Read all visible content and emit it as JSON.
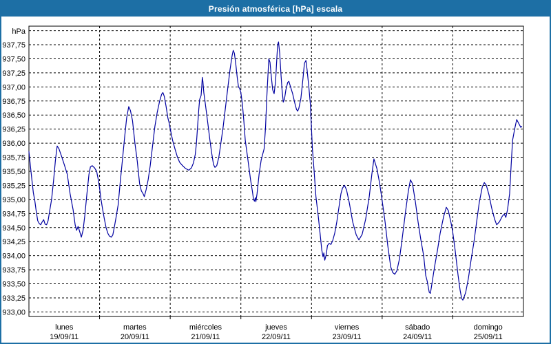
{
  "window": {
    "title": "Presión atmosférica [hPa] escala"
  },
  "colors": {
    "frame": "#1d6fa5",
    "titlebar_bg": "#1d6fa5",
    "title_text": "#ffffff",
    "plot_bg": "#ffffff",
    "grid": "#000000",
    "axis": "#000000",
    "label_text": "#000000",
    "line": "#0000a0"
  },
  "chart_data": {
    "type": "line",
    "title": "Presión atmosférica [hPa] escala",
    "y_unit_label": "hPa",
    "ylim": [
      933.0,
      938.0
    ],
    "y_tick_step": 0.25,
    "y_tick_labels": [
      "937,75",
      "937,50",
      "937,25",
      "937,00",
      "936,75",
      "936,50",
      "936,25",
      "936,00",
      "935,75",
      "935,50",
      "935,25",
      "935,00",
      "934,75",
      "934,50",
      "934,25",
      "934,00",
      "933,75",
      "933,50",
      "933,25",
      "933,00"
    ],
    "grid": "dashed",
    "legend": "none",
    "hours_per_day": 24,
    "x_days": [
      {
        "name": "lunes",
        "date": "19/09/11"
      },
      {
        "name": "martes",
        "date": "20/09/11"
      },
      {
        "name": "miércoles",
        "date": "21/09/11"
      },
      {
        "name": "jueves",
        "date": "22/09/11"
      },
      {
        "name": "viernes",
        "date": "23/09/11"
      },
      {
        "name": "sábado",
        "date": "24/09/11"
      },
      {
        "name": "domingo",
        "date": "25/09/11"
      }
    ],
    "series": [
      {
        "name": "Presión atmosférica [hPa]",
        "color": "#0000a0",
        "points": [
          [
            0,
            935.85
          ],
          [
            0.5,
            935.6
          ],
          [
            1,
            935.35
          ],
          [
            1.5,
            935.12
          ],
          [
            2,
            934.98
          ],
          [
            2.5,
            934.78
          ],
          [
            3,
            934.62
          ],
          [
            3.5,
            934.57
          ],
          [
            4,
            934.55
          ],
          [
            4.5,
            934.6
          ],
          [
            5,
            934.64
          ],
          [
            5.5,
            934.56
          ],
          [
            6,
            934.55
          ],
          [
            6.5,
            934.62
          ],
          [
            7,
            934.78
          ],
          [
            7.7,
            935.0
          ],
          [
            8.4,
            935.35
          ],
          [
            9,
            935.7
          ],
          [
            9.6,
            935.95
          ],
          [
            10.2,
            935.9
          ],
          [
            11,
            935.78
          ],
          [
            12,
            935.62
          ],
          [
            13,
            935.45
          ],
          [
            14,
            935.1
          ],
          [
            15,
            934.82
          ],
          [
            15.7,
            934.55
          ],
          [
            16.2,
            934.45
          ],
          [
            16.7,
            934.52
          ],
          [
            17.3,
            934.42
          ],
          [
            17.8,
            934.33
          ],
          [
            18.4,
            934.45
          ],
          [
            19,
            934.72
          ],
          [
            19.7,
            935.1
          ],
          [
            20.4,
            935.45
          ],
          [
            20.9,
            935.58
          ],
          [
            21.5,
            935.6
          ],
          [
            22.3,
            935.56
          ],
          [
            23,
            935.5
          ],
          [
            23.5,
            935.37
          ],
          [
            24,
            935.2
          ],
          [
            24.5,
            935.0
          ],
          [
            25,
            934.84
          ],
          [
            25.6,
            934.66
          ],
          [
            26.2,
            934.5
          ],
          [
            26.8,
            934.4
          ],
          [
            27.3,
            934.35
          ],
          [
            28,
            934.33
          ],
          [
            28.5,
            934.37
          ],
          [
            29,
            934.5
          ],
          [
            29.6,
            934.68
          ],
          [
            30.3,
            934.9
          ],
          [
            31,
            935.3
          ],
          [
            31.8,
            935.72
          ],
          [
            32.5,
            936.1
          ],
          [
            33.2,
            936.45
          ],
          [
            33.9,
            936.65
          ],
          [
            34.5,
            936.58
          ],
          [
            35.2,
            936.4
          ],
          [
            36,
            936.0
          ],
          [
            36.8,
            935.68
          ],
          [
            37.6,
            935.28
          ],
          [
            38.2,
            935.15
          ],
          [
            38.8,
            935.1
          ],
          [
            39.2,
            935.05
          ],
          [
            39.8,
            935.17
          ],
          [
            40.5,
            935.35
          ],
          [
            41.2,
            935.6
          ],
          [
            42,
            935.95
          ],
          [
            42.8,
            936.3
          ],
          [
            43.6,
            936.55
          ],
          [
            44.4,
            936.75
          ],
          [
            45.1,
            936.87
          ],
          [
            45.5,
            936.9
          ],
          [
            46,
            936.83
          ],
          [
            46.6,
            936.65
          ],
          [
            47.2,
            936.45
          ],
          [
            47.6,
            936.37
          ],
          [
            48,
            936.26
          ],
          [
            48.8,
            936.05
          ],
          [
            49.6,
            935.9
          ],
          [
            50.4,
            935.76
          ],
          [
            51.2,
            935.66
          ],
          [
            52.2,
            935.6
          ],
          [
            53.2,
            935.55
          ],
          [
            54.3,
            935.52
          ],
          [
            55.2,
            935.56
          ],
          [
            55.9,
            935.65
          ],
          [
            56.5,
            935.8
          ],
          [
            56.9,
            936.0
          ],
          [
            57.3,
            936.3
          ],
          [
            57.7,
            936.6
          ],
          [
            58,
            936.78
          ],
          [
            58.3,
            936.82
          ],
          [
            58.5,
            936.85
          ],
          [
            58.7,
            937.0
          ],
          [
            58.9,
            937.17
          ],
          [
            59.1,
            937.1
          ],
          [
            59.4,
            936.9
          ],
          [
            59.8,
            936.75
          ],
          [
            60.3,
            936.55
          ],
          [
            60.9,
            936.3
          ],
          [
            61.5,
            936.05
          ],
          [
            62.1,
            935.82
          ],
          [
            62.7,
            935.62
          ],
          [
            63.2,
            935.57
          ],
          [
            63.8,
            935.6
          ],
          [
            64.5,
            935.75
          ],
          [
            65.2,
            936.0
          ],
          [
            66,
            936.3
          ],
          [
            66.8,
            936.65
          ],
          [
            67.6,
            937.0
          ],
          [
            68.3,
            937.3
          ],
          [
            69,
            937.55
          ],
          [
            69.4,
            937.65
          ],
          [
            69.8,
            937.6
          ],
          [
            70.3,
            937.4
          ],
          [
            70.8,
            937.15
          ],
          [
            71.2,
            937.0
          ],
          [
            71.6,
            936.97
          ],
          [
            72,
            936.9
          ],
          [
            72.5,
            936.7
          ],
          [
            73,
            936.4
          ],
          [
            73.5,
            936.05
          ],
          [
            74.4,
            935.7
          ],
          [
            75.3,
            935.35
          ],
          [
            75.9,
            935.15
          ],
          [
            76.3,
            935.0
          ],
          [
            76.6,
            934.97
          ],
          [
            76.9,
            935.03
          ],
          [
            77.1,
            934.96
          ],
          [
            77.5,
            935.1
          ],
          [
            78.2,
            935.45
          ],
          [
            78.9,
            935.7
          ],
          [
            79.4,
            935.8
          ],
          [
            79.9,
            935.9
          ],
          [
            80.4,
            936.3
          ],
          [
            80.8,
            936.8
          ],
          [
            81.2,
            937.2
          ],
          [
            81.5,
            937.5
          ],
          [
            81.9,
            937.44
          ],
          [
            82.4,
            937.15
          ],
          [
            82.8,
            936.95
          ],
          [
            83.3,
            936.88
          ],
          [
            83.8,
            937.1
          ],
          [
            84.2,
            937.5
          ],
          [
            84.5,
            937.75
          ],
          [
            84.8,
            937.8
          ],
          [
            85.2,
            937.6
          ],
          [
            85.6,
            937.25
          ],
          [
            86,
            936.95
          ],
          [
            86.4,
            936.73
          ],
          [
            86.8,
            936.78
          ],
          [
            87.3,
            936.95
          ],
          [
            87.9,
            937.08
          ],
          [
            88.3,
            937.1
          ],
          [
            88.9,
            937.0
          ],
          [
            89.6,
            936.88
          ],
          [
            90.3,
            936.72
          ],
          [
            90.9,
            936.6
          ],
          [
            91.3,
            936.57
          ],
          [
            91.7,
            936.62
          ],
          [
            92.4,
            936.8
          ],
          [
            93.1,
            937.15
          ],
          [
            93.6,
            937.42
          ],
          [
            94.1,
            937.47
          ],
          [
            94.5,
            937.3
          ],
          [
            95.1,
            937.0
          ],
          [
            95.6,
            936.7
          ],
          [
            95.9,
            936.35
          ],
          [
            96.3,
            935.9
          ],
          [
            96.9,
            935.5
          ],
          [
            97.5,
            935.05
          ],
          [
            98.3,
            934.7
          ],
          [
            99,
            934.35
          ],
          [
            99.5,
            934.1
          ],
          [
            99.9,
            933.98
          ],
          [
            100.2,
            934.05
          ],
          [
            100.5,
            933.92
          ],
          [
            101,
            934.02
          ],
          [
            101.4,
            934.18
          ],
          [
            102,
            934.22
          ],
          [
            102.6,
            934.2
          ],
          [
            103.2,
            934.27
          ],
          [
            103.9,
            934.4
          ],
          [
            104.6,
            934.6
          ],
          [
            105.3,
            934.85
          ],
          [
            106,
            935.1
          ],
          [
            106.5,
            935.2
          ],
          [
            107.2,
            935.25
          ],
          [
            107.9,
            935.17
          ],
          [
            108.8,
            934.95
          ],
          [
            110,
            934.6
          ],
          [
            111.2,
            934.37
          ],
          [
            112.1,
            934.28
          ],
          [
            113.2,
            934.38
          ],
          [
            114.4,
            934.65
          ],
          [
            115.6,
            935.05
          ],
          [
            116.5,
            935.45
          ],
          [
            117.2,
            935.72
          ],
          [
            118.2,
            935.55
          ],
          [
            119.1,
            935.3
          ],
          [
            119.9,
            935.02
          ],
          [
            121,
            934.6
          ],
          [
            121.9,
            934.18
          ],
          [
            122.9,
            933.8
          ],
          [
            123.6,
            933.7
          ],
          [
            124.3,
            933.67
          ],
          [
            125,
            933.73
          ],
          [
            125.9,
            933.95
          ],
          [
            126.8,
            934.3
          ],
          [
            128,
            934.8
          ],
          [
            128.9,
            935.15
          ],
          [
            129.6,
            935.35
          ],
          [
            130.3,
            935.28
          ],
          [
            131.3,
            934.95
          ],
          [
            132.2,
            934.6
          ],
          [
            133.1,
            934.3
          ],
          [
            134.1,
            934.0
          ],
          [
            134.8,
            933.65
          ],
          [
            135.3,
            933.55
          ],
          [
            136,
            933.35
          ],
          [
            136.4,
            933.33
          ],
          [
            136.9,
            933.5
          ],
          [
            137.8,
            933.8
          ],
          [
            138.8,
            934.1
          ],
          [
            139.7,
            934.4
          ],
          [
            140.9,
            934.7
          ],
          [
            141.8,
            934.86
          ],
          [
            142.5,
            934.8
          ],
          [
            143.4,
            934.58
          ],
          [
            143.9,
            934.45
          ],
          [
            144.8,
            934.1
          ],
          [
            145.8,
            933.65
          ],
          [
            146.5,
            933.38
          ],
          [
            147,
            933.24
          ],
          [
            147.4,
            933.21
          ],
          [
            147.8,
            933.26
          ],
          [
            148.4,
            933.35
          ],
          [
            149.3,
            933.6
          ],
          [
            150.2,
            933.92
          ],
          [
            151.2,
            934.25
          ],
          [
            152.1,
            934.6
          ],
          [
            153,
            934.95
          ],
          [
            154,
            935.22
          ],
          [
            154.7,
            935.3
          ],
          [
            155.4,
            935.25
          ],
          [
            156.3,
            935.08
          ],
          [
            157.2,
            934.85
          ],
          [
            158.2,
            934.65
          ],
          [
            158.9,
            934.55
          ],
          [
            159.8,
            934.6
          ],
          [
            160.8,
            934.7
          ],
          [
            161.5,
            934.74
          ],
          [
            162,
            934.68
          ],
          [
            162.6,
            934.82
          ],
          [
            163.3,
            935.1
          ],
          [
            163.8,
            935.6
          ],
          [
            164.3,
            936.05
          ],
          [
            165,
            936.25
          ],
          [
            165.7,
            936.42
          ],
          [
            166.4,
            936.35
          ],
          [
            167.1,
            936.28
          ],
          [
            167.4,
            936.3
          ]
        ]
      }
    ]
  }
}
